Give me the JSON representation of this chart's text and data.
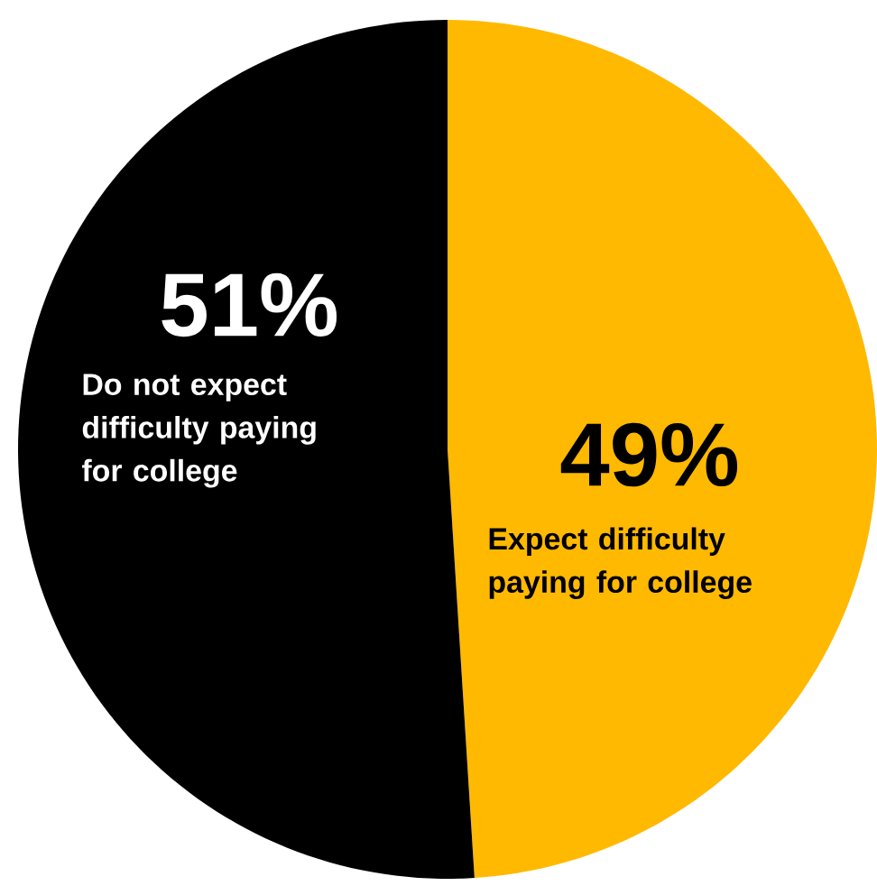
{
  "chart_data": {
    "type": "pie",
    "categories": [
      "Expect difficulty paying for college",
      "Do not expect difficulty paying for college"
    ],
    "values": [
      49,
      51
    ],
    "colors": [
      "#ffb900",
      "#000000"
    ],
    "value_labels": [
      "49%",
      "51%"
    ]
  }
}
